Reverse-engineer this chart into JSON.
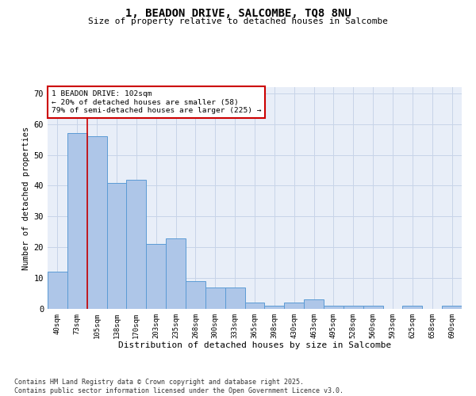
{
  "title": "1, BEADON DRIVE, SALCOMBE, TQ8 8NU",
  "subtitle": "Size of property relative to detached houses in Salcombe",
  "xlabel": "Distribution of detached houses by size in Salcombe",
  "ylabel": "Number of detached properties",
  "categories": [
    "40sqm",
    "73sqm",
    "105sqm",
    "138sqm",
    "170sqm",
    "203sqm",
    "235sqm",
    "268sqm",
    "300sqm",
    "333sqm",
    "365sqm",
    "398sqm",
    "430sqm",
    "463sqm",
    "495sqm",
    "528sqm",
    "560sqm",
    "593sqm",
    "625sqm",
    "658sqm",
    "690sqm"
  ],
  "values": [
    12,
    57,
    56,
    41,
    42,
    21,
    23,
    9,
    7,
    7,
    2,
    1,
    2,
    3,
    1,
    1,
    1,
    0,
    1,
    0,
    1
  ],
  "bar_color": "#aec6e8",
  "bar_edge_color": "#5b9bd5",
  "ylim": [
    0,
    72
  ],
  "yticks": [
    0,
    10,
    20,
    30,
    40,
    50,
    60,
    70
  ],
  "property_line_x": 1.5,
  "annotation_title": "1 BEADON DRIVE: 102sqm",
  "annotation_line1": "← 20% of detached houses are smaller (58)",
  "annotation_line2": "79% of semi-detached houses are larger (225) →",
  "annotation_box_color": "#ffffff",
  "annotation_box_edge": "#cc0000",
  "vline_color": "#cc0000",
  "grid_color": "#c8d4e8",
  "background_color": "#e8eef8",
  "footer1": "Contains HM Land Registry data © Crown copyright and database right 2025.",
  "footer2": "Contains public sector information licensed under the Open Government Licence v3.0."
}
